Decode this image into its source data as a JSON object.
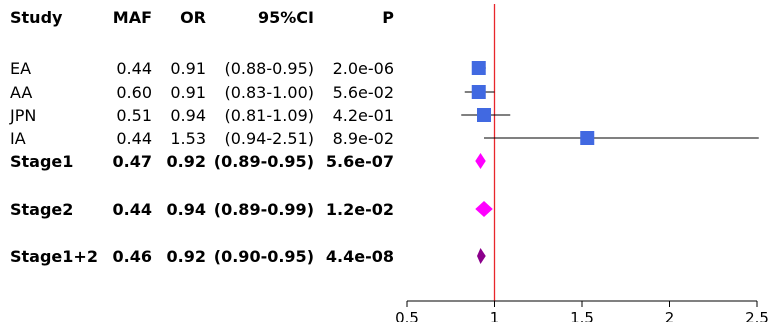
{
  "chart_data": {
    "type": "forest",
    "columns": [
      "Study",
      "MAF",
      "OR",
      "95%CI",
      "P"
    ],
    "rows": [
      {
        "study": "EA",
        "maf": "0.44",
        "or": "0.91",
        "ci": "(0.88-0.95)",
        "p": "2.0e-06",
        "or_value": 0.91,
        "ci_low": 0.88,
        "ci_high": 0.95,
        "kind": "study",
        "bold": false,
        "color": "#4169e1"
      },
      {
        "study": "AA",
        "maf": "0.60",
        "or": "0.91",
        "ci": "(0.83-1.00)",
        "p": "5.6e-02",
        "or_value": 0.91,
        "ci_low": 0.83,
        "ci_high": 1.0,
        "kind": "study",
        "bold": false,
        "color": "#4169e1"
      },
      {
        "study": "JPN",
        "maf": "0.51",
        "or": "0.94",
        "ci": "(0.81-1.09)",
        "p": "4.2e-01",
        "or_value": 0.94,
        "ci_low": 0.81,
        "ci_high": 1.09,
        "kind": "study",
        "bold": false,
        "color": "#4169e1"
      },
      {
        "study": "IA",
        "maf": "0.44",
        "or": "1.53",
        "ci": "(0.94-2.51)",
        "p": "8.9e-02",
        "or_value": 1.53,
        "ci_low": 0.94,
        "ci_high": 2.51,
        "kind": "study",
        "bold": false,
        "color": "#4169e1"
      },
      {
        "study": "Stage1",
        "maf": "0.47",
        "or": "0.92",
        "ci": "(0.89-0.95)",
        "p": "5.6e-07",
        "or_value": 0.92,
        "ci_low": 0.89,
        "ci_high": 0.95,
        "kind": "summary",
        "bold": true,
        "color": "#ff00ff"
      },
      {
        "study": "Stage2",
        "maf": "0.44",
        "or": "0.94",
        "ci": "(0.89-0.99)",
        "p": "1.2e-02",
        "or_value": 0.94,
        "ci_low": 0.89,
        "ci_high": 0.99,
        "kind": "summary",
        "bold": true,
        "color": "#ff00ff"
      },
      {
        "study": "Stage1+2",
        "maf": "0.46",
        "or": "0.92",
        "ci": "(0.90-0.95)",
        "p": "4.4e-08",
        "or_value": 0.92,
        "ci_low": 0.9,
        "ci_high": 0.95,
        "kind": "summary",
        "bold": true,
        "color": "#8b008b"
      }
    ],
    "x_ticks": [
      "0.5",
      "1",
      "1.5",
      "2",
      "2.5"
    ],
    "xlim": [
      0.5,
      2.5
    ],
    "reference_line": 1,
    "reference_color": "#e8262b",
    "grid": false
  }
}
